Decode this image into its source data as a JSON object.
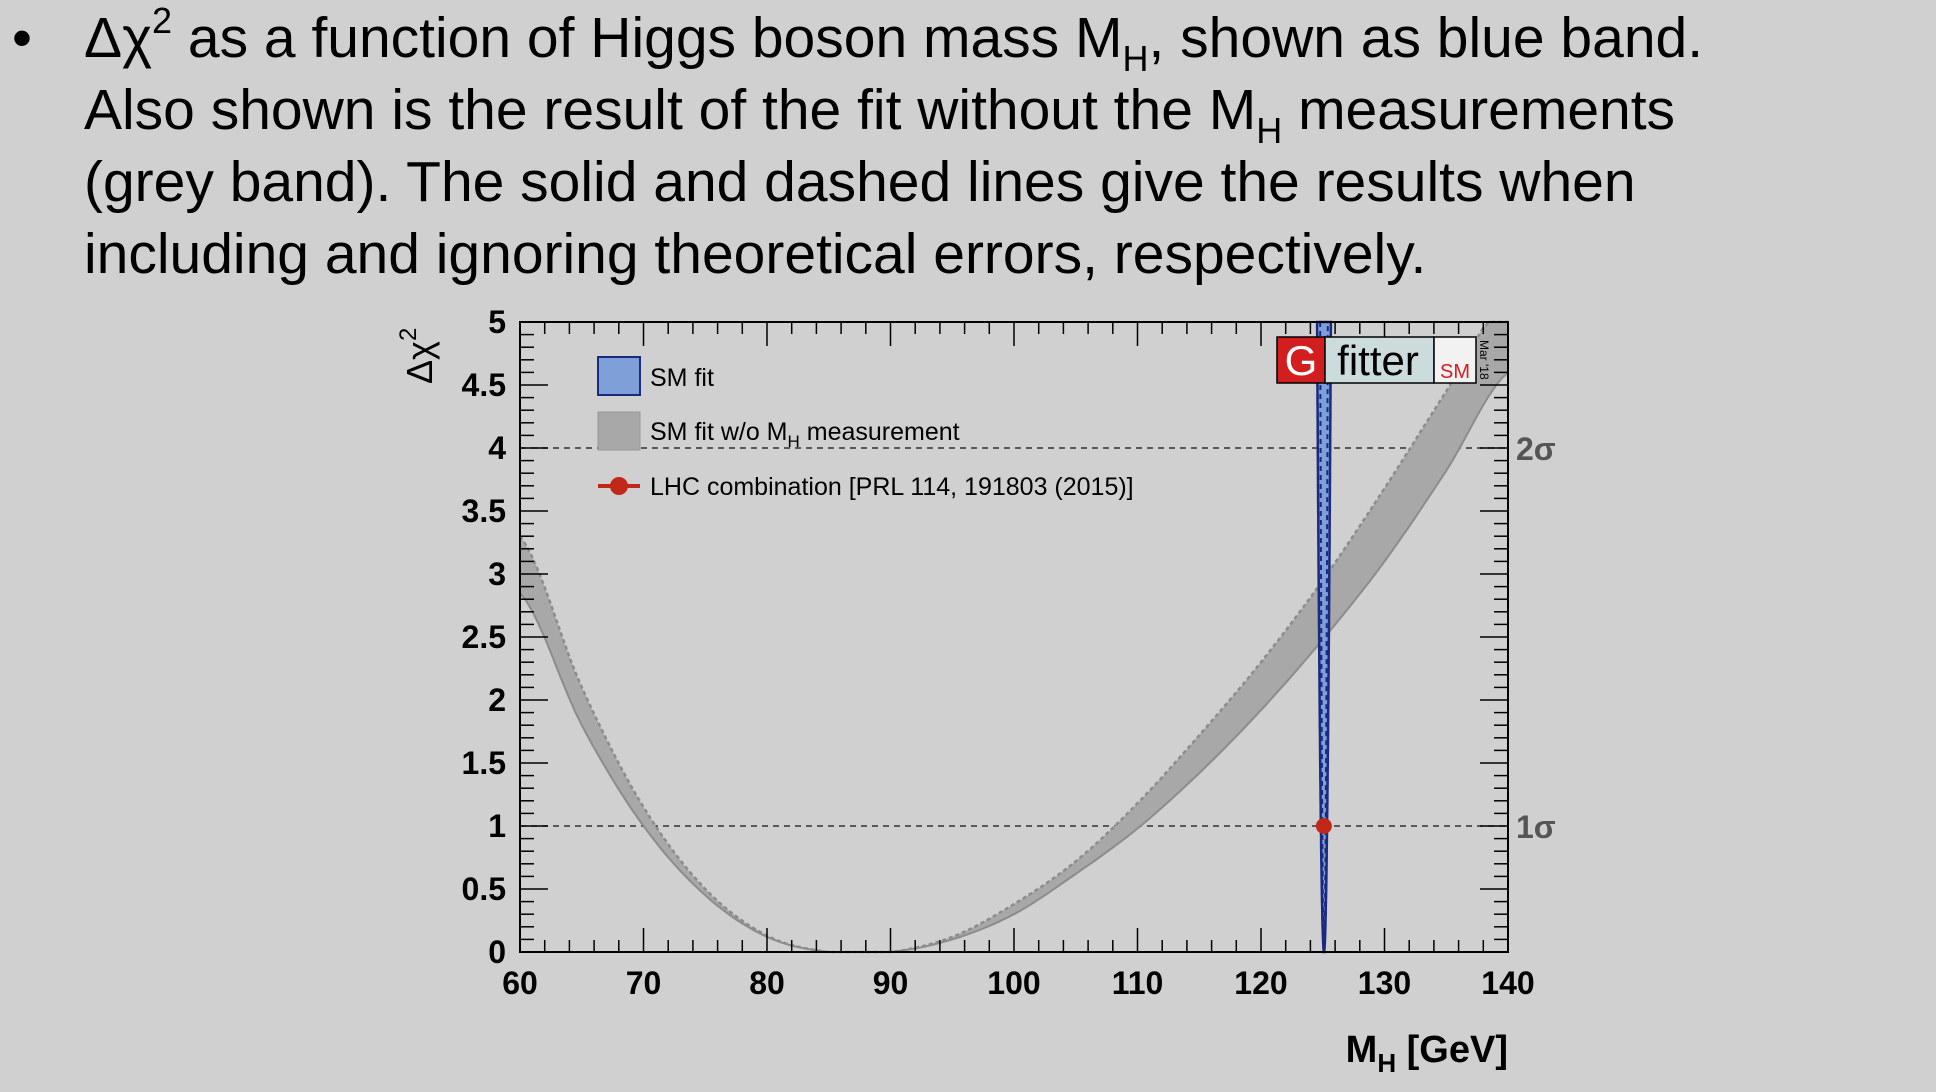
{
  "bullet": {
    "symbol": "•",
    "line1_a": "Δχ",
    "line1_sup": "2",
    "line1_b": " as a function of Higgs boson mass M",
    "line1_sub": "H",
    "line1_c": ", shown as blue band.",
    "line2_a": "Also shown is the result of the fit without the M",
    "line2_sub": "H",
    "line2_b": " measurements",
    "line3": "(grey band). The solid and dashed lines give the results when",
    "line4": "including and ignoring theoretical errors, respectively."
  },
  "colors": {
    "background": "#d0d0d0",
    "grey_band": "#a8a8a8",
    "grey_band_edge": "#8c8c8c",
    "blue_band": "#7f9fd8",
    "blue_line": "#1a2a80",
    "lhc_marker": "#c0281a",
    "gfitter_red": "#d21e1e",
    "gfitter_box": "#ccdbdb"
  },
  "chart_data": {
    "type": "line",
    "xlabel": "M",
    "xlabel_sub": "H",
    "xlabel_unit": " [GeV]",
    "ylabel": "Δχ",
    "ylabel_sup": "2",
    "xlim": [
      60,
      140
    ],
    "ylim": [
      0,
      5
    ],
    "xticks": [
      "60",
      "70",
      "80",
      "90",
      "100",
      "110",
      "120",
      "130",
      "140"
    ],
    "yticks": [
      "0",
      "0.5",
      "1",
      "1.5",
      "2",
      "2.5",
      "3",
      "3.5",
      "4",
      "4.5",
      "5"
    ],
    "sigma_lines": [
      {
        "y": 1,
        "label": "1σ"
      },
      {
        "y": 4,
        "label": "2σ"
      }
    ],
    "grey_band_lower": {
      "x": [
        60,
        65,
        70,
        75,
        80,
        85,
        90,
        95,
        100,
        105,
        110,
        115,
        120,
        125,
        130,
        135,
        140
      ],
      "y": [
        2.85,
        1.8,
        1.0,
        0.45,
        0.12,
        0.0,
        0.0,
        0.1,
        0.3,
        0.62,
        0.98,
        1.42,
        1.92,
        2.48,
        3.1,
        3.82,
        4.6
      ]
    },
    "grey_band_upper": {
      "x": [
        60,
        65,
        70,
        75,
        80,
        85,
        90,
        95,
        100,
        105,
        110,
        115,
        120,
        125,
        130,
        135,
        140
      ],
      "y": [
        3.3,
        2.1,
        1.15,
        0.5,
        0.13,
        0.0,
        0.0,
        0.12,
        0.38,
        0.72,
        1.18,
        1.72,
        2.3,
        2.95,
        3.68,
        4.45,
        5.2
      ]
    },
    "sm_fit": {
      "center": 125.1,
      "half_width": 0.25
    },
    "lhc_point": {
      "x": 125.09,
      "y": 1
    },
    "legend": [
      {
        "label": "SM fit"
      },
      {
        "label_a": "SM fit w/o M",
        "label_sub": "H",
        "label_b": " measurement"
      },
      {
        "label": "LHC combination [PRL 114, 191803 (2015)]"
      }
    ],
    "logo": {
      "g": "G",
      "fitter": "fitter",
      "sm": "SM",
      "date": "Mar '18"
    }
  }
}
